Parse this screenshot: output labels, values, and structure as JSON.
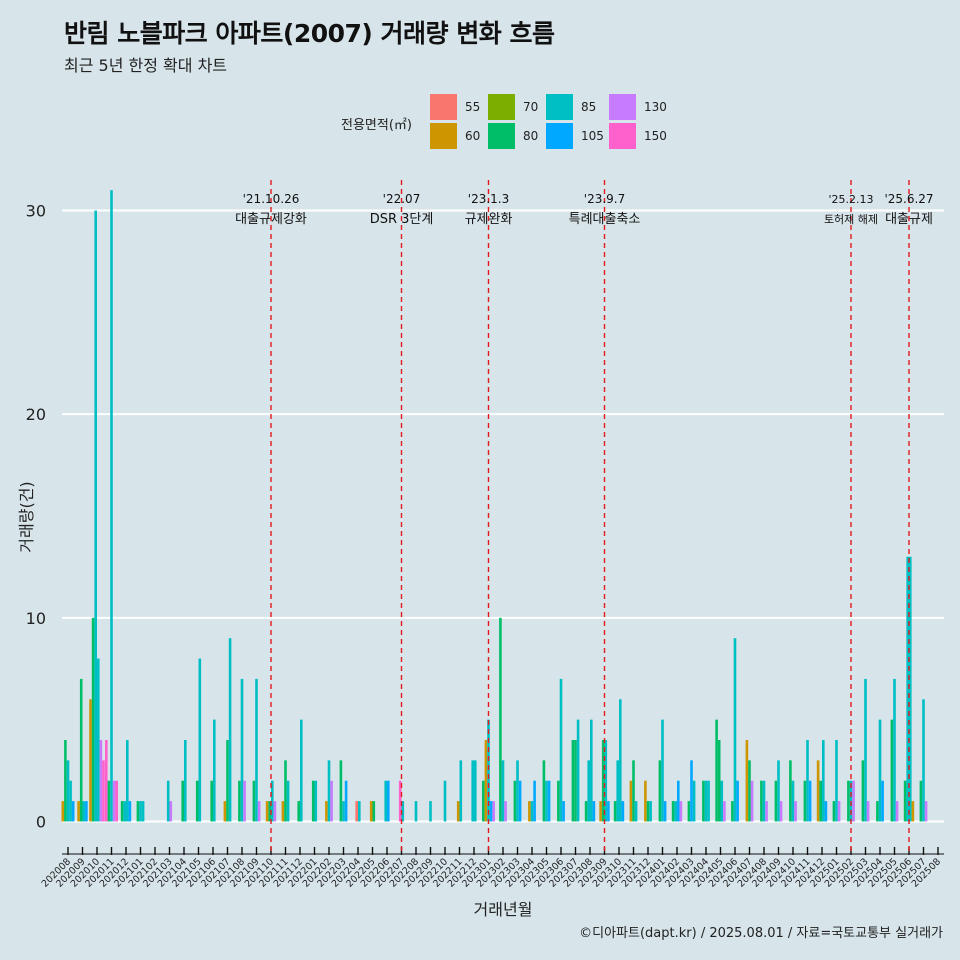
{
  "title": "반림 노블파크 아파트(2007) 거래량 변화 흐름",
  "subtitle": "최근 5년 한정 확대 차트",
  "caption": "©디아파트(dapt.kr) / 2025.08.01 / 자료=국토교통부 실거래가",
  "legend": {
    "title": "전용면적(㎡)",
    "items": [
      {
        "label": "55",
        "color": "#F8766D"
      },
      {
        "label": "60",
        "color": "#CD9600"
      },
      {
        "label": "70",
        "color": "#7CAE00"
      },
      {
        "label": "80",
        "color": "#00BE67"
      },
      {
        "label": "85",
        "color": "#00BFC4"
      },
      {
        "label": "105",
        "color": "#00A9FF"
      },
      {
        "label": "130",
        "color": "#C77CFF"
      },
      {
        "label": "150",
        "color": "#FF61CC"
      }
    ]
  },
  "chart_data": {
    "type": "bar",
    "title": "반림 노블파크 아파트(2007) 거래량 변화 흐름",
    "xlabel": "거래년월",
    "ylabel": "거래량(건)",
    "ylim": [
      -1.5,
      31.5
    ],
    "yticks": [
      0,
      10,
      20,
      30
    ],
    "legend_position": "top",
    "months": [
      "202008",
      "202009",
      "202010",
      "202011",
      "202012",
      "202101",
      "202102",
      "202103",
      "202104",
      "202105",
      "202106",
      "202107",
      "202108",
      "202109",
      "202110",
      "202111",
      "202112",
      "202201",
      "202202",
      "202203",
      "202204",
      "202205",
      "202206",
      "202207",
      "202208",
      "202209",
      "202210",
      "202211",
      "202212",
      "202301",
      "202302",
      "202303",
      "202304",
      "202305",
      "202306",
      "202307",
      "202308",
      "202309",
      "202310",
      "202311",
      "202312",
      "202401",
      "202402",
      "202403",
      "202404",
      "202405",
      "202406",
      "202407",
      "202408",
      "202409",
      "202410",
      "202411",
      "202412",
      "202501",
      "202502",
      "202503",
      "202504",
      "202505",
      "202506",
      "202507",
      "202508"
    ],
    "events": [
      {
        "month": "202110",
        "date": "'21.10.26",
        "label": "대출규제강화"
      },
      {
        "month": "202207",
        "date": "'22.07",
        "label": "DSR 3단계"
      },
      {
        "month": "202301",
        "date": "'23.1.3",
        "label": "규제완화"
      },
      {
        "month": "202309",
        "date": "'23.9.7",
        "label": "특례대출축소"
      },
      {
        "month": "202502",
        "date": "'25.2.13",
        "label": "토허제 해제"
      },
      {
        "month": "202506",
        "date": "'25.6.27",
        "label": "대출규제"
      }
    ],
    "series": [
      {
        "month": "202008",
        "bars": [
          {
            "area": "60",
            "v": 1
          },
          {
            "area": "80",
            "v": 4
          },
          {
            "area": "85",
            "v": 3
          },
          {
            "area": "85",
            "v": 2
          },
          {
            "area": "105",
            "v": 1
          }
        ]
      },
      {
        "month": "202009",
        "bars": [
          {
            "area": "60",
            "v": 1
          },
          {
            "area": "80",
            "v": 7
          },
          {
            "area": "85",
            "v": 1
          },
          {
            "area": "105",
            "v": 1
          }
        ]
      },
      {
        "month": "202010",
        "bars": [
          {
            "area": "60",
            "v": 6
          },
          {
            "area": "80",
            "v": 10
          },
          {
            "area": "85",
            "v": 30
          },
          {
            "area": "85",
            "v": 8
          },
          {
            "area": "130",
            "v": 4
          },
          {
            "area": "150",
            "v": 3
          }
        ]
      },
      {
        "month": "202011",
        "bars": [
          {
            "area": "150",
            "v": 4
          },
          {
            "area": "80",
            "v": 2
          },
          {
            "area": "85",
            "v": 31
          },
          {
            "area": "130",
            "v": 2
          },
          {
            "area": "150",
            "v": 2
          }
        ]
      },
      {
        "month": "202012",
        "bars": [
          {
            "area": "80",
            "v": 1
          },
          {
            "area": "85",
            "v": 1
          },
          {
            "area": "85",
            "v": 4
          },
          {
            "area": "105",
            "v": 1
          }
        ]
      },
      {
        "month": "202101",
        "bars": [
          {
            "area": "80",
            "v": 1
          },
          {
            "area": "85",
            "v": 1
          },
          {
            "area": "85",
            "v": 1
          }
        ]
      },
      {
        "month": "202102",
        "bars": []
      },
      {
        "month": "202103",
        "bars": [
          {
            "area": "85",
            "v": 2
          },
          {
            "area": "130",
            "v": 1
          }
        ]
      },
      {
        "month": "202104",
        "bars": [
          {
            "area": "80",
            "v": 2
          },
          {
            "area": "85",
            "v": 4
          }
        ]
      },
      {
        "month": "202105",
        "bars": [
          {
            "area": "80",
            "v": 2
          },
          {
            "area": "85",
            "v": 8
          }
        ]
      },
      {
        "month": "202106",
        "bars": [
          {
            "area": "80",
            "v": 2
          },
          {
            "area": "85",
            "v": 5
          }
        ]
      },
      {
        "month": "202107",
        "bars": [
          {
            "area": "60",
            "v": 1
          },
          {
            "area": "80",
            "v": 4
          },
          {
            "area": "85",
            "v": 9
          }
        ]
      },
      {
        "month": "202108",
        "bars": [
          {
            "area": "80",
            "v": 2
          },
          {
            "area": "85",
            "v": 7
          },
          {
            "area": "130",
            "v": 2
          }
        ]
      },
      {
        "month": "202109",
        "bars": [
          {
            "area": "80",
            "v": 2
          },
          {
            "area": "85",
            "v": 7
          },
          {
            "area": "130",
            "v": 1
          }
        ]
      },
      {
        "month": "202110",
        "bars": [
          {
            "area": "60",
            "v": 1
          },
          {
            "area": "80",
            "v": 1
          },
          {
            "area": "85",
            "v": 2
          },
          {
            "area": "130",
            "v": 1
          }
        ]
      },
      {
        "month": "202111",
        "bars": [
          {
            "area": "60",
            "v": 1
          },
          {
            "area": "80",
            "v": 3
          },
          {
            "area": "85",
            "v": 2
          }
        ]
      },
      {
        "month": "202112",
        "bars": [
          {
            "area": "80",
            "v": 1
          },
          {
            "area": "85",
            "v": 5
          }
        ]
      },
      {
        "month": "202201",
        "bars": [
          {
            "area": "80",
            "v": 2
          },
          {
            "area": "85",
            "v": 2
          }
        ]
      },
      {
        "month": "202202",
        "bars": [
          {
            "area": "60",
            "v": 1
          },
          {
            "area": "85",
            "v": 3
          },
          {
            "area": "130",
            "v": 2
          }
        ]
      },
      {
        "month": "202203",
        "bars": [
          {
            "area": "80",
            "v": 3
          },
          {
            "area": "85",
            "v": 1
          },
          {
            "area": "105",
            "v": 2
          }
        ]
      },
      {
        "month": "202204",
        "bars": [
          {
            "area": "55",
            "v": 1
          },
          {
            "area": "85",
            "v": 1
          }
        ]
      },
      {
        "month": "202205",
        "bars": [
          {
            "area": "60",
            "v": 1
          },
          {
            "area": "80",
            "v": 1
          }
        ]
      },
      {
        "month": "202206",
        "bars": [
          {
            "area": "85",
            "v": 2
          },
          {
            "area": "105",
            "v": 2
          }
        ]
      },
      {
        "month": "202207",
        "bars": [
          {
            "area": "150",
            "v": 2
          },
          {
            "area": "85",
            "v": 1
          }
        ]
      },
      {
        "month": "202208",
        "bars": [
          {
            "area": "85",
            "v": 1
          }
        ]
      },
      {
        "month": "202209",
        "bars": [
          {
            "area": "85",
            "v": 1
          }
        ]
      },
      {
        "month": "202210",
        "bars": [
          {
            "area": "85",
            "v": 2
          }
        ]
      },
      {
        "month": "202211",
        "bars": [
          {
            "area": "60",
            "v": 1
          },
          {
            "area": "85",
            "v": 3
          }
        ]
      },
      {
        "month": "202212",
        "bars": [
          {
            "area": "85",
            "v": 3
          },
          {
            "area": "85",
            "v": 3
          }
        ]
      },
      {
        "month": "202301",
        "bars": [
          {
            "area": "80",
            "v": 2
          },
          {
            "area": "60",
            "v": 4
          },
          {
            "area": "85",
            "v": 5
          },
          {
            "area": "105",
            "v": 1
          },
          {
            "area": "130",
            "v": 1
          }
        ]
      },
      {
        "month": "202302",
        "bars": [
          {
            "area": "80",
            "v": 10
          },
          {
            "area": "85",
            "v": 3
          },
          {
            "area": "130",
            "v": 1
          }
        ]
      },
      {
        "month": "202303",
        "bars": [
          {
            "area": "80",
            "v": 2
          },
          {
            "area": "85",
            "v": 3
          },
          {
            "area": "105",
            "v": 2
          }
        ]
      },
      {
        "month": "202304",
        "bars": [
          {
            "area": "60",
            "v": 1
          },
          {
            "area": "85",
            "v": 1
          },
          {
            "area": "105",
            "v": 2
          }
        ]
      },
      {
        "month": "202305",
        "bars": [
          {
            "area": "80",
            "v": 3
          },
          {
            "area": "85",
            "v": 2
          },
          {
            "area": "105",
            "v": 2
          }
        ]
      },
      {
        "month": "202306",
        "bars": [
          {
            "area": "80",
            "v": 2
          },
          {
            "area": "85",
            "v": 7
          },
          {
            "area": "105",
            "v": 1
          }
        ]
      },
      {
        "month": "202307",
        "bars": [
          {
            "area": "80",
            "v": 4
          },
          {
            "area": "80",
            "v": 4
          },
          {
            "area": "85",
            "v": 5
          }
        ]
      },
      {
        "month": "202308",
        "bars": [
          {
            "area": "80",
            "v": 1
          },
          {
            "area": "85",
            "v": 3
          },
          {
            "area": "85",
            "v": 5
          },
          {
            "area": "105",
            "v": 1
          }
        ]
      },
      {
        "month": "202309",
        "bars": [
          {
            "area": "60",
            "v": 1
          },
          {
            "area": "80",
            "v": 4
          },
          {
            "area": "85",
            "v": 4
          },
          {
            "area": "105",
            "v": 1
          }
        ]
      },
      {
        "month": "202310",
        "bars": [
          {
            "area": "80",
            "v": 1
          },
          {
            "area": "85",
            "v": 3
          },
          {
            "area": "85",
            "v": 6
          },
          {
            "area": "105",
            "v": 1
          }
        ]
      },
      {
        "month": "202311",
        "bars": [
          {
            "area": "60",
            "v": 2
          },
          {
            "area": "80",
            "v": 3
          },
          {
            "area": "85",
            "v": 1
          }
        ]
      },
      {
        "month": "202312",
        "bars": [
          {
            "area": "60",
            "v": 2
          },
          {
            "area": "80",
            "v": 1
          },
          {
            "area": "85",
            "v": 1
          }
        ]
      },
      {
        "month": "202401",
        "bars": [
          {
            "area": "80",
            "v": 3
          },
          {
            "area": "85",
            "v": 5
          },
          {
            "area": "105",
            "v": 1
          }
        ]
      },
      {
        "month": "202402",
        "bars": [
          {
            "area": "80",
            "v": 1
          },
          {
            "area": "85",
            "v": 1
          },
          {
            "area": "105",
            "v": 2
          },
          {
            "area": "130",
            "v": 1
          }
        ]
      },
      {
        "month": "202403",
        "bars": [
          {
            "area": "80",
            "v": 1
          },
          {
            "area": "105",
            "v": 3
          },
          {
            "area": "85",
            "v": 2
          }
        ]
      },
      {
        "month": "202404",
        "bars": [
          {
            "area": "80",
            "v": 2
          },
          {
            "area": "85",
            "v": 2
          },
          {
            "area": "85",
            "v": 2
          }
        ]
      },
      {
        "month": "202405",
        "bars": [
          {
            "area": "80",
            "v": 5
          },
          {
            "area": "80",
            "v": 4
          },
          {
            "area": "85",
            "v": 2
          },
          {
            "area": "130",
            "v": 1
          }
        ]
      },
      {
        "month": "202406",
        "bars": [
          {
            "area": "80",
            "v": 1
          },
          {
            "area": "85",
            "v": 9
          },
          {
            "area": "105",
            "v": 2
          }
        ]
      },
      {
        "month": "202407",
        "bars": [
          {
            "area": "60",
            "v": 4
          },
          {
            "area": "80",
            "v": 3
          },
          {
            "area": "130",
            "v": 2
          }
        ]
      },
      {
        "month": "202408",
        "bars": [
          {
            "area": "80",
            "v": 2
          },
          {
            "area": "85",
            "v": 2
          },
          {
            "area": "130",
            "v": 1
          }
        ]
      },
      {
        "month": "202409",
        "bars": [
          {
            "area": "80",
            "v": 2
          },
          {
            "area": "85",
            "v": 3
          },
          {
            "area": "130",
            "v": 1
          }
        ]
      },
      {
        "month": "202410",
        "bars": [
          {
            "area": "80",
            "v": 3
          },
          {
            "area": "85",
            "v": 2
          },
          {
            "area": "130",
            "v": 1
          }
        ]
      },
      {
        "month": "202411",
        "bars": [
          {
            "area": "80",
            "v": 2
          },
          {
            "area": "85",
            "v": 4
          },
          {
            "area": "105",
            "v": 2
          }
        ]
      },
      {
        "month": "202412",
        "bars": [
          {
            "area": "60",
            "v": 3
          },
          {
            "area": "80",
            "v": 2
          },
          {
            "area": "85",
            "v": 4
          },
          {
            "area": "105",
            "v": 1
          }
        ]
      },
      {
        "month": "202501",
        "bars": [
          {
            "area": "80",
            "v": 1
          },
          {
            "area": "85",
            "v": 4
          },
          {
            "area": "130",
            "v": 1
          }
        ]
      },
      {
        "month": "202502",
        "bars": [
          {
            "area": "80",
            "v": 2
          },
          {
            "area": "85",
            "v": 2
          },
          {
            "area": "130",
            "v": 2
          }
        ]
      },
      {
        "month": "202503",
        "bars": [
          {
            "area": "80",
            "v": 3
          },
          {
            "area": "85",
            "v": 7
          },
          {
            "area": "130",
            "v": 1
          }
        ]
      },
      {
        "month": "202504",
        "bars": [
          {
            "area": "80",
            "v": 1
          },
          {
            "area": "85",
            "v": 5
          },
          {
            "area": "105",
            "v": 2
          }
        ]
      },
      {
        "month": "202505",
        "bars": [
          {
            "area": "80",
            "v": 5
          },
          {
            "area": "85",
            "v": 7
          },
          {
            "area": "130",
            "v": 1
          }
        ]
      },
      {
        "month": "202506",
        "bars": [
          {
            "area": "80",
            "v": 2
          },
          {
            "area": "85",
            "v": 13
          },
          {
            "area": "85",
            "v": 13
          },
          {
            "area": "60",
            "v": 1
          }
        ]
      },
      {
        "month": "202507",
        "bars": [
          {
            "area": "80",
            "v": 2
          },
          {
            "area": "85",
            "v": 6
          },
          {
            "area": "130",
            "v": 1
          }
        ]
      },
      {
        "month": "202508",
        "bars": []
      }
    ]
  }
}
